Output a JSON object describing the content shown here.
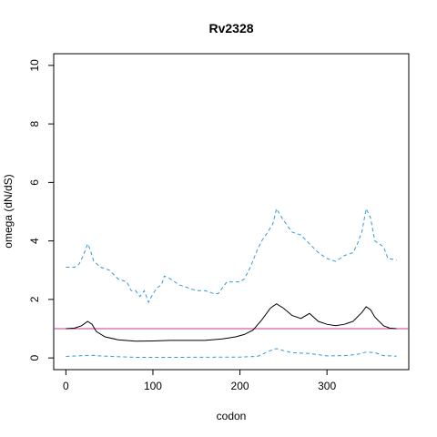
{
  "chart_data": {
    "type": "line",
    "title": "Rv2328",
    "xlabel": "codon",
    "ylabel": "omega (dN/dS)",
    "xlim": [
      -14,
      394
    ],
    "ylim": [
      -0.4,
      10.4
    ],
    "x_ticks": [
      0,
      100,
      200,
      300
    ],
    "y_ticks": [
      0,
      2,
      4,
      6,
      8,
      10
    ],
    "reference_line": {
      "y": 1,
      "color": "#cc3399"
    },
    "grid": false,
    "legend": "none",
    "series": [
      {
        "role": "upper",
        "color": "#3399dd",
        "style": "dashed",
        "points": [
          [
            0,
            3.1
          ],
          [
            10,
            3.1
          ],
          [
            15,
            3.2
          ],
          [
            20,
            3.5
          ],
          [
            25,
            3.9
          ],
          [
            28,
            3.7
          ],
          [
            32,
            3.3
          ],
          [
            40,
            3.1
          ],
          [
            50,
            3.0
          ],
          [
            60,
            2.7
          ],
          [
            70,
            2.6
          ],
          [
            75,
            2.3
          ],
          [
            80,
            2.3
          ],
          [
            85,
            2.1
          ],
          [
            90,
            2.3
          ],
          [
            95,
            1.9
          ],
          [
            100,
            2.2
          ],
          [
            105,
            2.4
          ],
          [
            110,
            2.5
          ],
          [
            113,
            2.8
          ],
          [
            120,
            2.7
          ],
          [
            130,
            2.5
          ],
          [
            140,
            2.4
          ],
          [
            150,
            2.3
          ],
          [
            160,
            2.3
          ],
          [
            170,
            2.2
          ],
          [
            175,
            2.2
          ],
          [
            180,
            2.4
          ],
          [
            185,
            2.6
          ],
          [
            190,
            2.6
          ],
          [
            200,
            2.6
          ],
          [
            205,
            2.7
          ],
          [
            212,
            3.1
          ],
          [
            220,
            3.7
          ],
          [
            225,
            4.0
          ],
          [
            232,
            4.3
          ],
          [
            238,
            4.6
          ],
          [
            242,
            5.1
          ],
          [
            248,
            4.8
          ],
          [
            255,
            4.5
          ],
          [
            260,
            4.3
          ],
          [
            270,
            4.2
          ],
          [
            280,
            3.9
          ],
          [
            290,
            3.6
          ],
          [
            300,
            3.4
          ],
          [
            310,
            3.3
          ],
          [
            320,
            3.5
          ],
          [
            330,
            3.6
          ],
          [
            335,
            3.9
          ],
          [
            340,
            4.3
          ],
          [
            345,
            5.1
          ],
          [
            350,
            4.8
          ],
          [
            355,
            4.0
          ],
          [
            360,
            3.9
          ],
          [
            365,
            3.8
          ],
          [
            370,
            3.4
          ],
          [
            380,
            3.35
          ]
        ]
      },
      {
        "role": "estimate",
        "color": "#000000",
        "style": "solid",
        "points": [
          [
            0,
            1.0
          ],
          [
            10,
            1.02
          ],
          [
            18,
            1.1
          ],
          [
            25,
            1.25
          ],
          [
            30,
            1.15
          ],
          [
            35,
            0.9
          ],
          [
            45,
            0.72
          ],
          [
            60,
            0.62
          ],
          [
            80,
            0.57
          ],
          [
            100,
            0.58
          ],
          [
            120,
            0.6
          ],
          [
            140,
            0.6
          ],
          [
            160,
            0.6
          ],
          [
            180,
            0.65
          ],
          [
            195,
            0.72
          ],
          [
            205,
            0.8
          ],
          [
            215,
            0.95
          ],
          [
            225,
            1.3
          ],
          [
            235,
            1.7
          ],
          [
            242,
            1.85
          ],
          [
            250,
            1.7
          ],
          [
            260,
            1.45
          ],
          [
            270,
            1.35
          ],
          [
            280,
            1.52
          ],
          [
            290,
            1.25
          ],
          [
            300,
            1.15
          ],
          [
            310,
            1.1
          ],
          [
            320,
            1.15
          ],
          [
            330,
            1.25
          ],
          [
            340,
            1.55
          ],
          [
            345,
            1.75
          ],
          [
            350,
            1.65
          ],
          [
            355,
            1.4
          ],
          [
            365,
            1.1
          ],
          [
            372,
            1.02
          ],
          [
            380,
            1.0
          ]
        ]
      },
      {
        "role": "lower",
        "color": "#3399dd",
        "style": "dashed",
        "points": [
          [
            0,
            0.05
          ],
          [
            20,
            0.08
          ],
          [
            30,
            0.09
          ],
          [
            50,
            0.05
          ],
          [
            80,
            0.02
          ],
          [
            120,
            0.02
          ],
          [
            200,
            0.03
          ],
          [
            220,
            0.05
          ],
          [
            235,
            0.25
          ],
          [
            242,
            0.32
          ],
          [
            250,
            0.25
          ],
          [
            260,
            0.18
          ],
          [
            280,
            0.15
          ],
          [
            300,
            0.07
          ],
          [
            320,
            0.08
          ],
          [
            335,
            0.12
          ],
          [
            345,
            0.2
          ],
          [
            355,
            0.18
          ],
          [
            365,
            0.08
          ],
          [
            380,
            0.06
          ]
        ]
      }
    ]
  }
}
